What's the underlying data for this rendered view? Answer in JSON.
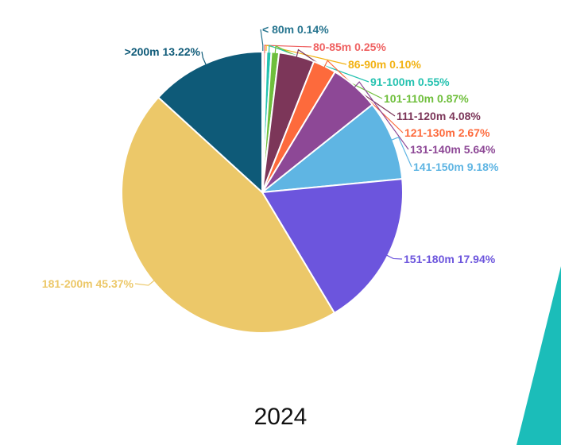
{
  "caption": "2024",
  "chart_data": {
    "type": "pie",
    "unit": "%",
    "start_angle_deg": 0,
    "direction": "clockwise",
    "slices": [
      {
        "label": "< 80m",
        "value": 0.14,
        "text": "< 80m 0.14%",
        "color": "#27758f"
      },
      {
        "label": "80-85m",
        "value": 0.25,
        "text": "80-85m 0.25%",
        "color": "#ef6161"
      },
      {
        "label": "86-90m",
        "value": 0.1,
        "text": "86-90m 0.10%",
        "color": "#f2b213"
      },
      {
        "label": "91-100m",
        "value": 0.55,
        "text": "91-100m 0.55%",
        "color": "#25c2b0"
      },
      {
        "label": "101-110m",
        "value": 0.87,
        "text": "101-110m 0.87%",
        "color": "#6fbf3c"
      },
      {
        "label": "111-120m",
        "value": 4.08,
        "text": "111-120m 4.08%",
        "color": "#7c3659"
      },
      {
        "label": "121-130m",
        "value": 2.67,
        "text": "121-130m 2.67%",
        "color": "#fd6a3c"
      },
      {
        "label": "131-140m",
        "value": 5.64,
        "text": "131-140m 5.64%",
        "color": "#8d4896"
      },
      {
        "label": "141-150m",
        "value": 9.18,
        "text": "141-150m 9.18%",
        "color": "#5fb5e3"
      },
      {
        "label": "151-180m",
        "value": 17.94,
        "text": "151-180m 17.94%",
        "color": "#6c55dd"
      },
      {
        "label": "181-200m",
        "value": 45.37,
        "text": "181-200m 45.37%",
        "color": "#ecc869"
      },
      {
        "label": ">200m",
        "value": 13.22,
        "text": ">200m 13.22%",
        "color": "#0e5a78"
      }
    ]
  },
  "decor": {
    "accent_color": "#1bbdb9"
  }
}
